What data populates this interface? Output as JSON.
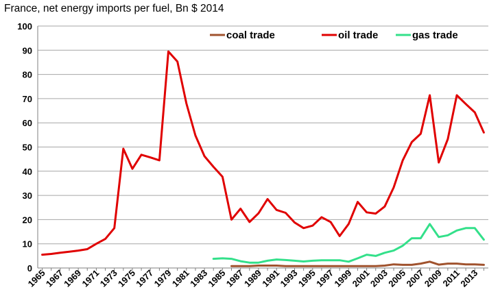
{
  "chart_data": {
    "type": "line",
    "title": "France, net energy imports per fuel, Bn $ 2014",
    "xlabel": "",
    "ylabel": "",
    "ylim": [
      0,
      100
    ],
    "yticks": [
      0,
      10,
      20,
      30,
      40,
      50,
      60,
      70,
      80,
      90,
      100
    ],
    "xlim": [
      1965,
      2014
    ],
    "xticks": [
      1965,
      1967,
      1969,
      1971,
      1973,
      1975,
      1977,
      1979,
      1981,
      1983,
      1985,
      1987,
      1989,
      1991,
      1993,
      1995,
      1997,
      1999,
      2001,
      2003,
      2005,
      2007,
      2009,
      2011,
      2013
    ],
    "grid": "horizontal",
    "legend": "top",
    "series": [
      {
        "name": "coal trade",
        "color": "#a0522d",
        "x": [
          1986,
          1987,
          1988,
          1989,
          1990,
          1991,
          1992,
          1993,
          1994,
          1995,
          1996,
          1997,
          1998,
          1999,
          2000,
          2001,
          2002,
          2003,
          2004,
          2005,
          2006,
          2007,
          2008,
          2009,
          2010,
          2011,
          2012,
          2013,
          2014
        ],
        "values": [
          0.8,
          0.8,
          0.8,
          1.0,
          1.0,
          1.0,
          0.8,
          0.8,
          0.8,
          0.8,
          0.8,
          0.8,
          0.8,
          0.8,
          0.8,
          0.8,
          0.8,
          1.0,
          1.5,
          1.3,
          1.3,
          1.8,
          2.6,
          1.4,
          1.8,
          1.8,
          1.5,
          1.5,
          1.3
        ]
      },
      {
        "name": "oil trade",
        "color": "#e00000",
        "x": [
          1965,
          1966,
          1967,
          1968,
          1969,
          1970,
          1971,
          1972,
          1973,
          1974,
          1975,
          1976,
          1977,
          1978,
          1979,
          1980,
          1981,
          1982,
          1983,
          1984,
          1985,
          1986,
          1987,
          1988,
          1989,
          1990,
          1991,
          1992,
          1993,
          1994,
          1995,
          1996,
          1997,
          1998,
          1999,
          2000,
          2001,
          2002,
          2003,
          2004,
          2005,
          2006,
          2007,
          2008,
          2009,
          2010,
          2011,
          2012,
          2013,
          2014
        ],
        "values": [
          5.5,
          5.8,
          6.3,
          6.7,
          7.2,
          7.8,
          10.0,
          12.0,
          16.5,
          49.3,
          41.0,
          46.8,
          45.7,
          44.5,
          89.5,
          85.3,
          68.0,
          54.8,
          46.2,
          41.8,
          37.7,
          20.0,
          24.5,
          19.0,
          22.6,
          28.5,
          24.0,
          22.8,
          18.8,
          16.5,
          17.5,
          21.0,
          19.0,
          13.2,
          18.2,
          27.3,
          23.0,
          22.5,
          25.4,
          33.3,
          44.5,
          52.0,
          55.5,
          71.4,
          43.6,
          53.3,
          71.4,
          67.8,
          64.3,
          56.0
        ]
      },
      {
        "name": "gas trade",
        "color": "#33e08a",
        "x": [
          1984,
          1985,
          1986,
          1987,
          1988,
          1989,
          1990,
          1991,
          1992,
          1993,
          1994,
          1995,
          1996,
          1997,
          1998,
          1999,
          2000,
          2001,
          2002,
          2003,
          2004,
          2005,
          2006,
          2007,
          2008,
          2009,
          2010,
          2011,
          2012,
          2013,
          2014
        ],
        "values": [
          3.8,
          4.0,
          3.8,
          2.8,
          2.2,
          2.2,
          3.0,
          3.5,
          3.3,
          3.0,
          2.7,
          3.0,
          3.2,
          3.2,
          3.2,
          2.6,
          4.0,
          5.5,
          5.0,
          6.3,
          7.2,
          9.2,
          12.3,
          12.3,
          18.2,
          12.8,
          13.5,
          15.5,
          16.5,
          16.5,
          11.7
        ]
      }
    ]
  }
}
